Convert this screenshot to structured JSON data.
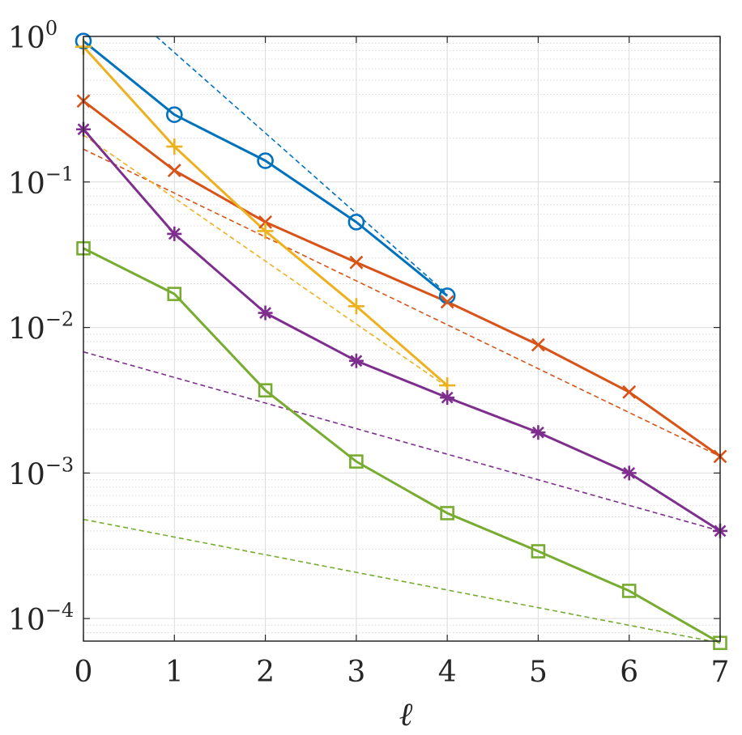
{
  "chart_data": {
    "type": "line",
    "title": "",
    "xlabel": "ℓ",
    "ylabel": "",
    "yscale": "log",
    "xlim": [
      0,
      7
    ],
    "ylim": [
      7e-05,
      1
    ],
    "grid": true,
    "minor_grid": true,
    "x_ticks": [
      "0",
      "1",
      "2",
      "3",
      "4",
      "5",
      "6",
      "7"
    ],
    "y_ticks": [
      {
        "base": "10",
        "exp": "0",
        "value": 1
      },
      {
        "base": "10",
        "exp": "−1",
        "value": 0.1
      },
      {
        "base": "10",
        "exp": "−2",
        "value": 0.01
      },
      {
        "base": "10",
        "exp": "−3",
        "value": 0.001
      },
      {
        "base": "10",
        "exp": "−4",
        "value": 0.0001
      }
    ],
    "series": [
      {
        "color": "#0072BD",
        "marker": "circle",
        "x": [
          0,
          1,
          2,
          3,
          4
        ],
        "y": [
          0.93,
          0.29,
          0.14,
          0.053,
          0.0165
        ]
      },
      {
        "color": "#D95319",
        "marker": "x",
        "x": [
          0,
          1,
          2,
          3,
          4,
          5,
          6,
          7
        ],
        "y": [
          0.36,
          0.12,
          0.053,
          0.028,
          0.015,
          0.0076,
          0.0036,
          0.0013
        ]
      },
      {
        "color": "#EDB120",
        "marker": "plus",
        "x": [
          0,
          1,
          2,
          3,
          4
        ],
        "y": [
          0.85,
          0.175,
          0.046,
          0.014,
          0.004
        ]
      },
      {
        "color": "#7E2F8E",
        "marker": "asterisk",
        "x": [
          0,
          1,
          2,
          3,
          4,
          5,
          6,
          7
        ],
        "y": [
          0.23,
          0.044,
          0.0126,
          0.0059,
          0.0033,
          0.0019,
          0.001,
          0.0004
        ]
      },
      {
        "color": "#77AC30",
        "marker": "square",
        "x": [
          0,
          1,
          2,
          3,
          4,
          5,
          6,
          7
        ],
        "y": [
          0.035,
          0.017,
          0.0037,
          0.0012,
          0.00053,
          0.00029,
          0.000155,
          6.8e-05
        ]
      }
    ],
    "reference_lines": [
      {
        "color": "#0072BD",
        "x": [
          0.8,
          4
        ],
        "y": [
          1.0,
          0.017
        ]
      },
      {
        "color": "#D95319",
        "x": [
          0,
          7
        ],
        "y": [
          0.168,
          0.0013
        ]
      },
      {
        "color": "#EDB120",
        "x": [
          0,
          4
        ],
        "y": [
          0.21,
          0.0039
        ]
      },
      {
        "color": "#7E2F8E",
        "x": [
          0,
          7
        ],
        "y": [
          0.0068,
          0.0004
        ]
      },
      {
        "color": "#77AC30",
        "x": [
          0,
          7
        ],
        "y": [
          0.00048,
          6.8e-05
        ]
      }
    ]
  }
}
